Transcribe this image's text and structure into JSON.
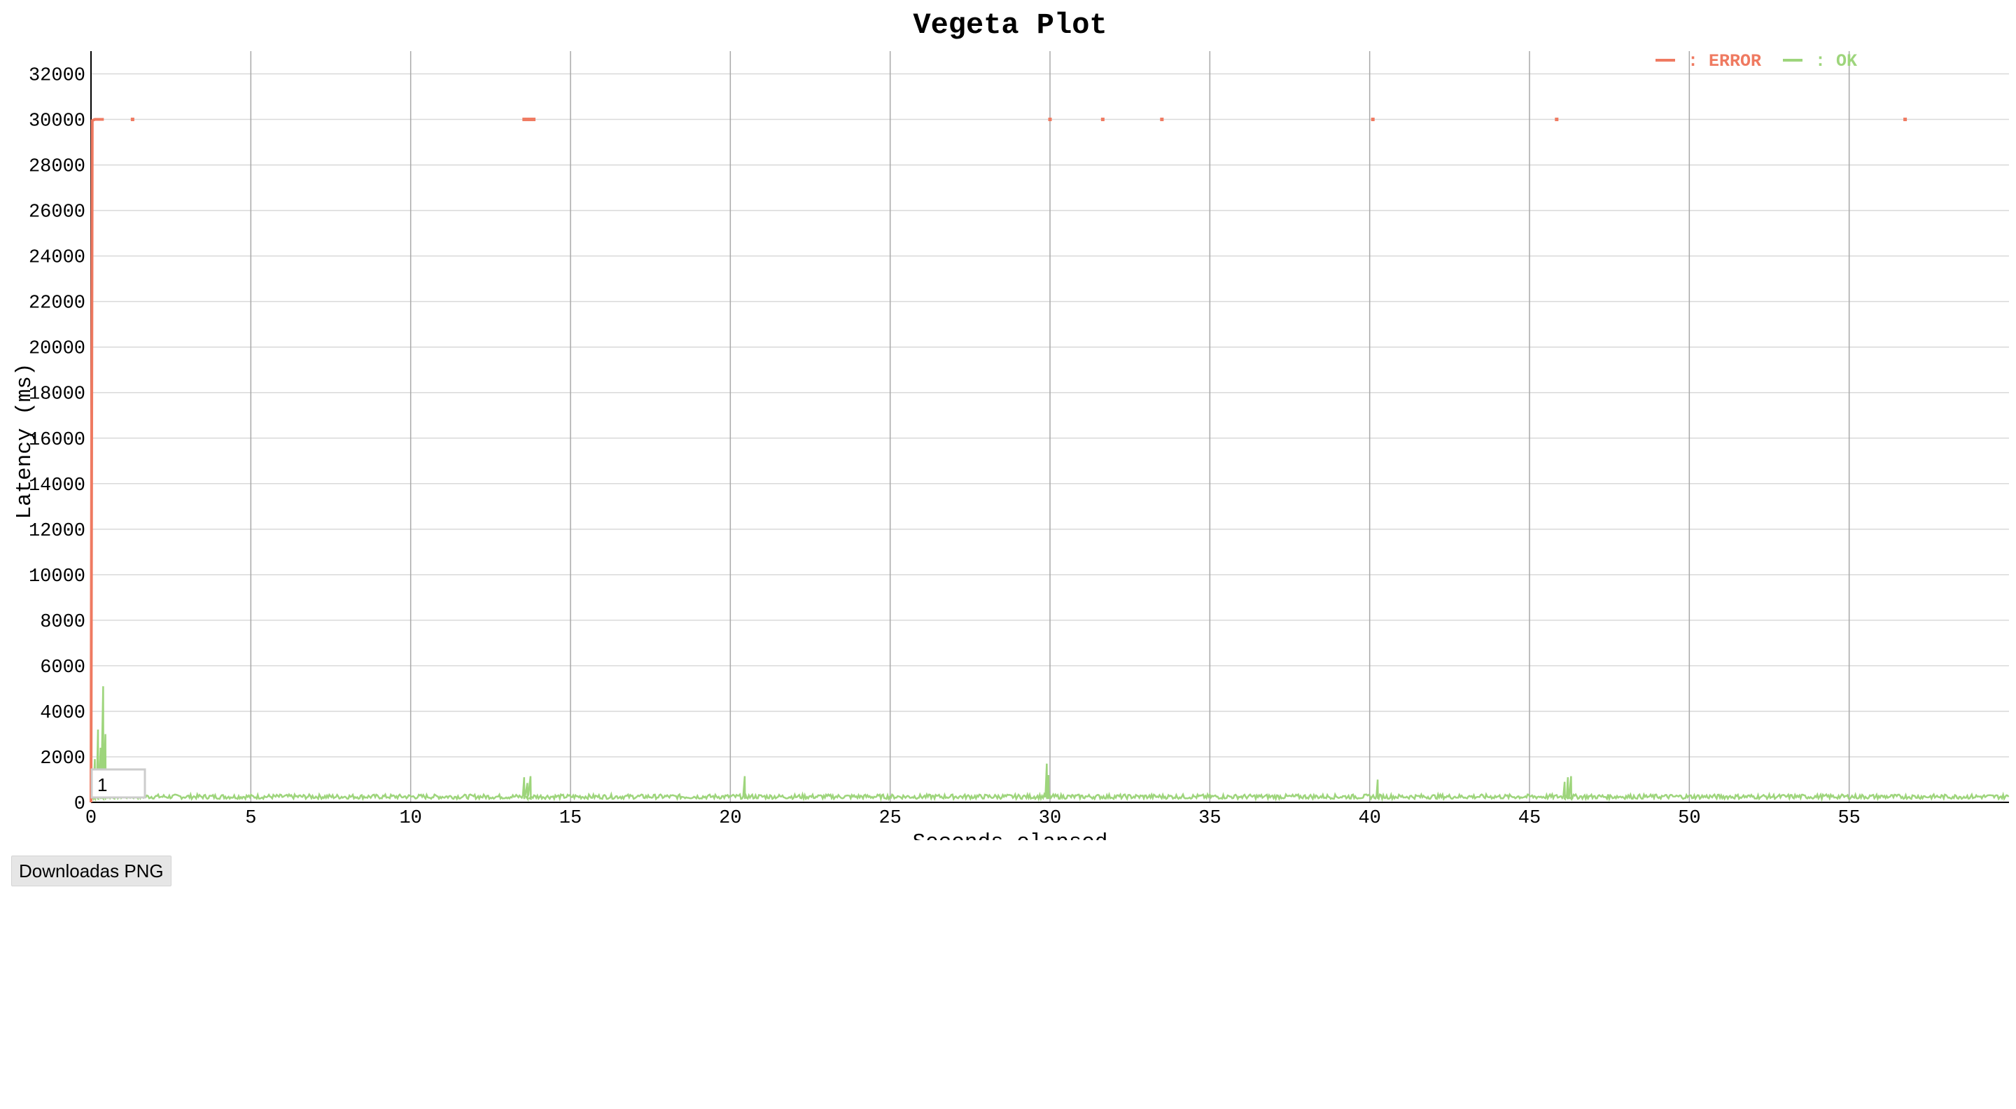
{
  "page": {
    "download_button_label": "Downloadas PNG"
  },
  "chart_data": {
    "type": "line",
    "title": "Vegeta Plot",
    "xlabel": "Seconds elapsed",
    "ylabel": "Latency (ms)",
    "xlim": [
      0,
      60
    ],
    "ylim": [
      0,
      33000
    ],
    "x_ticks": [
      0,
      5,
      10,
      15,
      20,
      25,
      30,
      35,
      40,
      45,
      50,
      55
    ],
    "y_ticks": [
      0,
      2000,
      4000,
      6000,
      8000,
      10000,
      12000,
      14000,
      16000,
      18000,
      20000,
      22000,
      24000,
      26000,
      28000,
      30000,
      32000
    ],
    "grid": true,
    "legend_position": "top-right",
    "range_selector_value": "1",
    "series": [
      {
        "name": "ERROR",
        "color": "#ef7a61",
        "kind": "line",
        "points": [
          [
            0.0,
            0
          ],
          [
            0.04,
            29950
          ],
          [
            0.12,
            30000
          ],
          [
            0.2,
            30000
          ],
          [
            0.3,
            30000
          ],
          [
            0.4,
            30000
          ]
        ]
      },
      {
        "name": "ERROR",
        "color": "#ef7a61",
        "kind": "points",
        "points": [
          [
            1.3,
            30000
          ],
          [
            13.55,
            30000
          ],
          [
            13.65,
            30000
          ],
          [
            13.75,
            30000
          ],
          [
            13.85,
            30000
          ],
          [
            30.0,
            30000
          ],
          [
            31.65,
            30000
          ],
          [
            33.5,
            30000
          ],
          [
            40.1,
            30000
          ],
          [
            45.85,
            30000
          ],
          [
            56.75,
            30000
          ]
        ]
      },
      {
        "name": "OK",
        "color": "#9ed57c",
        "kind": "line",
        "baseline": [
          150,
          350
        ],
        "spikes": [
          [
            0.12,
            1900
          ],
          [
            0.22,
            3200
          ],
          [
            0.3,
            2400
          ],
          [
            0.38,
            5100
          ],
          [
            0.45,
            3000
          ],
          [
            13.55,
            1100
          ],
          [
            13.65,
            850
          ],
          [
            13.75,
            1150
          ],
          [
            20.45,
            1150
          ],
          [
            29.9,
            1700
          ],
          [
            29.95,
            1200
          ],
          [
            40.25,
            1000
          ],
          [
            46.1,
            900
          ],
          [
            46.2,
            1100
          ],
          [
            46.3,
            1150
          ]
        ]
      }
    ]
  }
}
